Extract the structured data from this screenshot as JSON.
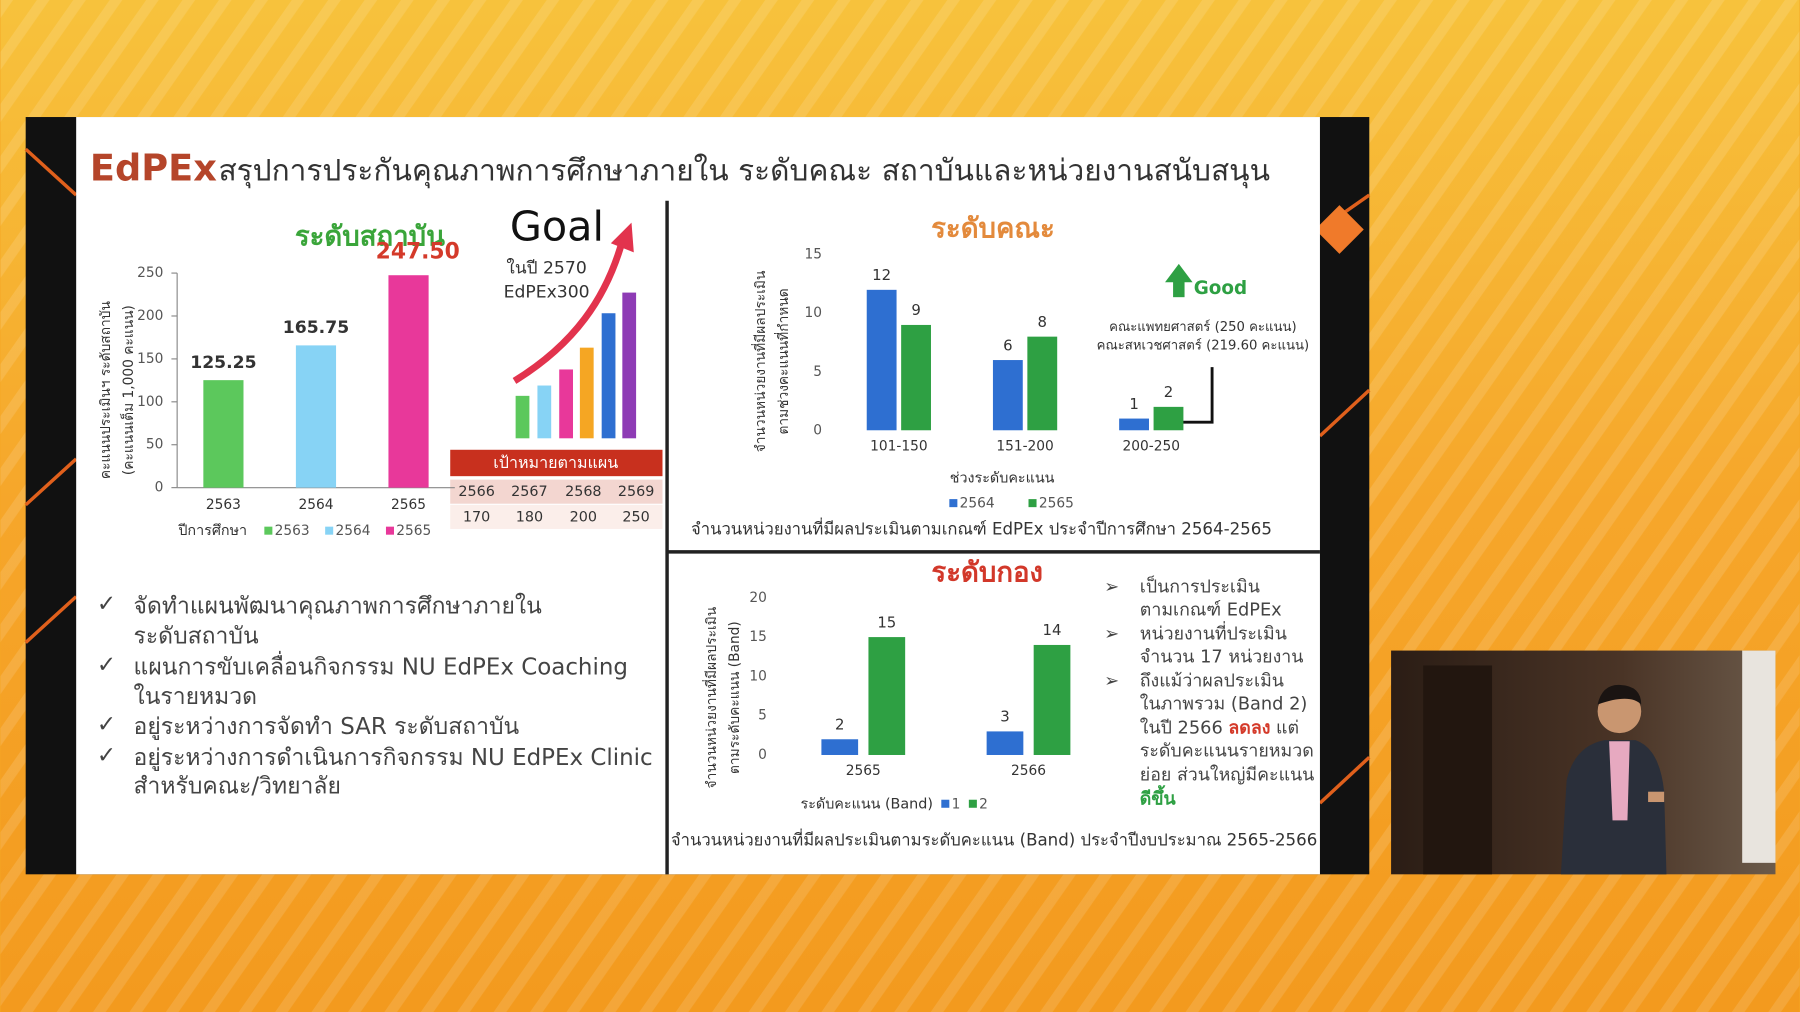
{
  "slide": {
    "brand": "EdPEx",
    "title": "สรุปการประกันคุณภาพการศึกษาภายใน ระดับคณะ สถาบันและหน่วยงานสนับสนุน",
    "goal": {
      "title": "Goal",
      "lines": [
        "ในปี 2570",
        "EdPEx300"
      ]
    },
    "plan": {
      "title": "เป้าหมายตามแผน",
      "years": [
        "2566",
        "2567",
        "2568",
        "2569"
      ],
      "targets": [
        "170",
        "180",
        "200",
        "250"
      ]
    },
    "bullets": [
      [
        "จัดทำแผนพัฒนาคุณภาพการศึกษาภายใน",
        "ระดับสถาบัน"
      ],
      [
        "แผนการขับเคลื่อนกิจกรรม NU EdPEx Coaching",
        "ในรายหมวด"
      ],
      [
        "อยู่ระหว่างการจัดทำ SAR ระดับสถาบัน"
      ],
      [
        "อยู่ระหว่างการดำเนินการกิจกรรม NU EdPEx Clinic",
        "สำหรับคณะ/วิทยาลัย"
      ]
    ],
    "notes": [
      [
        "เป็นการประเมิน",
        "ตามเกณฑ์ EdPEx"
      ],
      [
        "หน่วยงานที่ประเมิน",
        "จำนวน 17 หน่วยงาน"
      ],
      [
        "ถึงแม้ว่าผลประเมิน",
        "ในภาพรวม (Band 2)",
        [
          "ในปี 2566 ",
          "ลดลง",
          " แต่"
        ],
        "ระดับคะแนนรายหมวด",
        "ย่อย ส่วนใหญ่มีคะแนน",
        "ดีขึ้น"
      ]
    ]
  },
  "chart_data": [
    {
      "type": "bar",
      "title": "ระดับสถาบัน",
      "y_label": [
        "คะแนนประเมินฯ ระดับสถาบัน",
        "(คะแนนเต็ม 1,000 คะแนน)"
      ],
      "x_label": "ปีการศึกษา",
      "categories": [
        "2563",
        "2564",
        "2565"
      ],
      "values": [
        125.25,
        165.75,
        247.5
      ],
      "value_labels": [
        "125.25",
        "165.75",
        "247.50"
      ],
      "colors": [
        "#5cc85c",
        "#87d3f5",
        "#e8389a"
      ],
      "value_label_colors": [
        "#333333",
        "#333333",
        "#d43a2a"
      ],
      "ylim": [
        0,
        250
      ],
      "yticks": [
        0,
        50,
        100,
        150,
        200,
        250
      ],
      "legend": "bottom"
    },
    {
      "type": "grouped_bar",
      "title": "ระดับคณะ",
      "y_label": [
        "จำนวนหน่วยงานที่มีผลประเมิน",
        "ตามช่วงคะแนนที่กำหนด"
      ],
      "x_label": "ช่วงระดับคะแนน",
      "categories": [
        "101-150",
        "151-200",
        "200-250"
      ],
      "series": [
        {
          "name": "2564",
          "color": "#2e6fd1",
          "values": [
            12,
            6,
            1
          ]
        },
        {
          "name": "2565",
          "color": "#2ea043",
          "values": [
            9,
            8,
            2
          ]
        }
      ],
      "ylim": [
        0,
        15
      ],
      "yticks": [
        0,
        5,
        10,
        15
      ],
      "legend": "bottom",
      "caption": "จำนวนหน่วยงานที่มีผลประเมินตามเกณฑ์ EdPEx ประจำปีการศึกษา 2564-2565",
      "annotations": [
        "Good",
        "คณะแพทยศาสตร์ (250 คะแนน)",
        "คณะสหเวชศาสตร์ (219.60 คะแนน)"
      ]
    },
    {
      "type": "grouped_bar",
      "title": "ระดับกอง",
      "y_label": [
        "จำนวนหน่วยงานที่มีผลประเมิน",
        "ตามระดับคะแนน (Band)"
      ],
      "x_label": "ระดับคะแนน (Band)",
      "categories": [
        "2565",
        "2566"
      ],
      "series": [
        {
          "name": "1",
          "color": "#2e6fd1",
          "values": [
            2,
            3
          ]
        },
        {
          "name": "2",
          "color": "#2ea043",
          "values": [
            15,
            14
          ]
        }
      ],
      "ylim": [
        0,
        20
      ],
      "yticks": [
        0,
        5,
        10,
        15,
        20
      ],
      "legend": "bottom",
      "caption": "จำนวนหน่วยงานที่มีผลประเมินตามระดับคะแนน (Band) ประจำปีงบประมาณ 2565-2566"
    }
  ]
}
